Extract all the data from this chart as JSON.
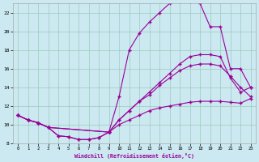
{
  "background_color": "#cce8f0",
  "grid_color": "#99ccbb",
  "line_color": "#990099",
  "marker": "+",
  "xlabel": "Windchill (Refroidissement éolien,°C)",
  "xlim": [
    -0.5,
    23.5
  ],
  "ylim": [
    8,
    23
  ],
  "yticks": [
    8,
    10,
    12,
    14,
    16,
    18,
    20,
    22
  ],
  "xticks": [
    0,
    1,
    2,
    3,
    4,
    5,
    6,
    7,
    8,
    9,
    10,
    11,
    12,
    13,
    14,
    15,
    16,
    17,
    18,
    19,
    20,
    21,
    22,
    23
  ],
  "line1_x": [
    0,
    1,
    2,
    3,
    4,
    5,
    6,
    7,
    8,
    9,
    10,
    11,
    12,
    13,
    14,
    15,
    16,
    17,
    18,
    19,
    20,
    21,
    22,
    23
  ],
  "line1_y": [
    11.0,
    10.5,
    10.2,
    9.7,
    8.8,
    8.7,
    8.4,
    8.4,
    8.6,
    9.2,
    13.0,
    18.0,
    19.8,
    21.0,
    22.0,
    23.0,
    23.2,
    23.2,
    23.0,
    20.5,
    20.5,
    16.0,
    16.0,
    14.0
  ],
  "line2_x": [
    0,
    1,
    2,
    3,
    4,
    5,
    6,
    7,
    8,
    9,
    10,
    11,
    12,
    13,
    14,
    15,
    16,
    17,
    18,
    19,
    20,
    21,
    22,
    23
  ],
  "line2_y": [
    11.0,
    10.5,
    10.2,
    9.7,
    8.8,
    8.7,
    8.4,
    8.4,
    8.6,
    9.2,
    10.5,
    11.5,
    12.5,
    13.5,
    14.5,
    15.5,
    16.5,
    17.3,
    17.5,
    17.5,
    17.3,
    15.0,
    13.5,
    14.0
  ],
  "line3_x": [
    0,
    1,
    2,
    3,
    9,
    10,
    11,
    12,
    13,
    14,
    15,
    16,
    17,
    18,
    19,
    20,
    21,
    22,
    23
  ],
  "line3_y": [
    11.0,
    10.5,
    10.2,
    9.7,
    9.2,
    10.5,
    11.5,
    12.5,
    13.2,
    14.2,
    15.0,
    15.8,
    16.3,
    16.5,
    16.5,
    16.3,
    15.2,
    14.0,
    13.0
  ],
  "line4_x": [
    0,
    1,
    2,
    3,
    9,
    10,
    11,
    12,
    13,
    14,
    15,
    16,
    17,
    18,
    19,
    20,
    21,
    22,
    23
  ],
  "line4_y": [
    11.0,
    10.5,
    10.2,
    9.7,
    9.2,
    10.0,
    10.5,
    11.0,
    11.5,
    11.8,
    12.0,
    12.2,
    12.4,
    12.5,
    12.5,
    12.5,
    12.4,
    12.3,
    12.8
  ]
}
